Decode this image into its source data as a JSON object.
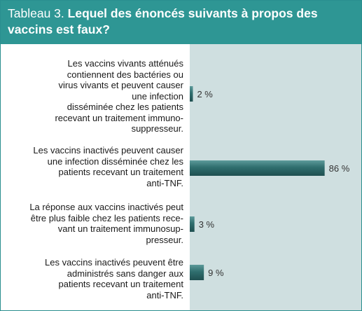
{
  "header": {
    "label": "Tableau 3.",
    "title": "Lequel des énoncés suivants à propos des vaccins est faux?"
  },
  "colors": {
    "header_bg": "#2e9694",
    "plot_bg": "#cfdfe0",
    "bar_fill": "#2f6e6e"
  },
  "chart_data": {
    "type": "bar",
    "orientation": "horizontal",
    "title": "Lequel des énoncés suivants à propos des vaccins est faux?",
    "xlim": [
      0,
      100
    ],
    "unit": "%",
    "grid": false,
    "categories": [
      "Les vaccins vivants atténués contiennent des bactéries ou virus vivants et peuvent causer une infection disséminée chez les patients recevant un traitement immuno-suppresseur.",
      "Les vaccins inactivés peuvent causer une infection disséminée chez les patients recevant un traitement anti-TNF.",
      "La réponse aux vaccins inactivés peut être plus faible chez les patients recevant un traitement immunosup-presseur.",
      "Les vaccins inactivés peuvent être administrés sans danger aux patients recevant un traitement anti-TNF."
    ],
    "category_lines": [
      [
        "Les vaccins vivants atténués",
        "contiennent des bactéries ou",
        "virus vivants et peuvent causer",
        "une infection",
        "disséminée chez les patients",
        "recevant un traitement immuno-",
        "suppresseur."
      ],
      [
        "Les vaccins inactivés peuvent causer",
        "une infection disséminée chez les",
        "patients recevant un traitement",
        "anti-TNF."
      ],
      [
        "La réponse aux vaccins inactivés peut",
        "être plus faible chez les patients rece-",
        "vant un traitement immunosup-",
        "presseur."
      ],
      [
        "Les vaccins inactivés peuvent être",
        "administrés sans danger aux",
        "patients recevant un traitement",
        "anti-TNF."
      ]
    ],
    "values": [
      2,
      86,
      3,
      9
    ],
    "value_labels": [
      "2 %",
      "86 %",
      "3 %",
      "9 %"
    ]
  }
}
